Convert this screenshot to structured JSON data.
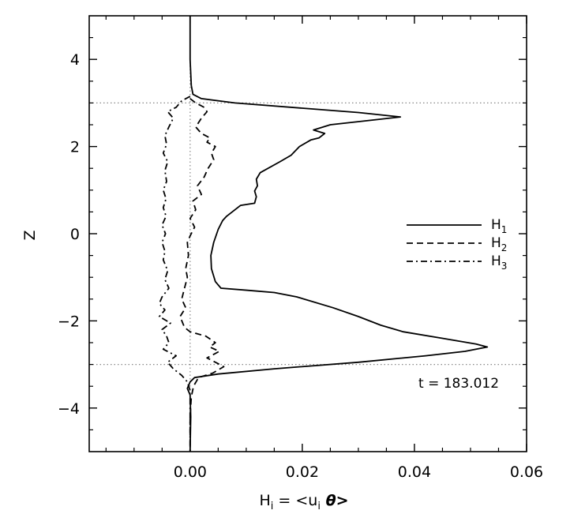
{
  "chart_data": {
    "type": "line",
    "xlabel": {
      "main": "H",
      "sub": "i",
      "eq": " = <u",
      "sub2": "i",
      "theta": " θ>"
    },
    "ylabel": "Z",
    "xlim": [
      -0.018,
      0.06
    ],
    "ylim": [
      -5,
      5
    ],
    "xticks": [
      0.0,
      0.02,
      0.04,
      0.06
    ],
    "xtick_labels": [
      "0.00",
      "0.02",
      "0.04",
      "0.06"
    ],
    "xminor": [
      -0.015,
      -0.01,
      -0.005,
      0.005,
      0.01,
      0.015,
      0.025,
      0.03,
      0.035,
      0.045,
      0.05,
      0.055
    ],
    "yticks": [
      -4,
      -2,
      0,
      2,
      4
    ],
    "ytick_labels": [
      "−4",
      "−2",
      "0",
      "2",
      "4"
    ],
    "yminor": [
      -4.5,
      -3.5,
      -3,
      -2.5,
      -1.5,
      -1,
      -0.5,
      0.5,
      1,
      1.5,
      2.5,
      3,
      3.5,
      4.5
    ],
    "reference_lines": {
      "horizontal": [
        3.0,
        -3.0
      ],
      "vertical": [
        0.0
      ],
      "style": "dotted"
    },
    "annotation": "t = 183.012",
    "legend": {
      "placement": "right",
      "entries": [
        {
          "main": "H",
          "sub": "1",
          "dash": "solid"
        },
        {
          "main": "H",
          "sub": "2",
          "dash": "dashed"
        },
        {
          "main": "H",
          "sub": "3",
          "dash": "dashdot"
        }
      ]
    },
    "series": [
      {
        "name": "H1",
        "dash": "solid",
        "points": [
          [
            0.0,
            5.0
          ],
          [
            0.0,
            4.0
          ],
          [
            0.0002,
            3.4
          ],
          [
            0.0005,
            3.2
          ],
          [
            0.002,
            3.1
          ],
          [
            0.008,
            3.0
          ],
          [
            0.02,
            2.88
          ],
          [
            0.03,
            2.78
          ],
          [
            0.0375,
            2.68
          ],
          [
            0.032,
            2.6
          ],
          [
            0.025,
            2.5
          ],
          [
            0.022,
            2.38
          ],
          [
            0.024,
            2.3
          ],
          [
            0.023,
            2.2
          ],
          [
            0.0215,
            2.15
          ],
          [
            0.0195,
            2.0
          ],
          [
            0.018,
            1.8
          ],
          [
            0.016,
            1.65
          ],
          [
            0.0125,
            1.4
          ],
          [
            0.0118,
            1.25
          ],
          [
            0.012,
            1.1
          ],
          [
            0.0115,
            0.98
          ],
          [
            0.0118,
            0.85
          ],
          [
            0.0115,
            0.7
          ],
          [
            0.009,
            0.65
          ],
          [
            0.0065,
            0.4
          ],
          [
            0.0058,
            0.3
          ],
          [
            0.005,
            0.1
          ],
          [
            0.0042,
            -0.2
          ],
          [
            0.0037,
            -0.5
          ],
          [
            0.0038,
            -0.8
          ],
          [
            0.0045,
            -1.1
          ],
          [
            0.0055,
            -1.25
          ],
          [
            0.0105,
            -1.3
          ],
          [
            0.015,
            -1.35
          ],
          [
            0.019,
            -1.45
          ],
          [
            0.0255,
            -1.7
          ],
          [
            0.03,
            -1.9
          ],
          [
            0.034,
            -2.1
          ],
          [
            0.038,
            -2.25
          ],
          [
            0.045,
            -2.4
          ],
          [
            0.051,
            -2.53
          ],
          [
            0.053,
            -2.6
          ],
          [
            0.049,
            -2.7
          ],
          [
            0.042,
            -2.8
          ],
          [
            0.03,
            -2.95
          ],
          [
            0.015,
            -3.1
          ],
          [
            0.005,
            -3.22
          ],
          [
            0.0008,
            -3.3
          ],
          [
            0.0,
            -3.4
          ],
          [
            -0.0005,
            -3.55
          ],
          [
            0.0,
            -3.7
          ],
          [
            0.0001,
            -4.2
          ],
          [
            0.0,
            -5.0
          ]
        ]
      },
      {
        "name": "H2",
        "dash": "dashed",
        "points": [
          [
            0.0,
            3.1
          ],
          [
            0.001,
            3.0
          ],
          [
            0.0025,
            2.9
          ],
          [
            0.003,
            2.8
          ],
          [
            0.002,
            2.65
          ],
          [
            0.001,
            2.45
          ],
          [
            0.002,
            2.3
          ],
          [
            0.0035,
            2.2
          ],
          [
            0.003,
            2.1
          ],
          [
            0.0045,
            2.0
          ],
          [
            0.0038,
            1.85
          ],
          [
            0.0042,
            1.7
          ],
          [
            0.0032,
            1.5
          ],
          [
            0.0025,
            1.3
          ],
          [
            0.0013,
            1.1
          ],
          [
            0.002,
            0.9
          ],
          [
            0.0005,
            0.75
          ],
          [
            0.001,
            0.55
          ],
          [
            0.0,
            0.35
          ],
          [
            0.0008,
            0.15
          ],
          [
            0.0,
            -0.05
          ],
          [
            -0.0005,
            -0.2
          ],
          [
            -0.0003,
            -0.5
          ],
          [
            -0.0008,
            -0.8
          ],
          [
            -0.0005,
            -1.0
          ],
          [
            -0.001,
            -1.25
          ],
          [
            -0.0015,
            -1.5
          ],
          [
            -0.0008,
            -1.7
          ],
          [
            -0.0018,
            -1.9
          ],
          [
            -0.001,
            -2.15
          ],
          [
            0.0,
            -2.25
          ],
          [
            0.0028,
            -2.35
          ],
          [
            0.0045,
            -2.5
          ],
          [
            0.0035,
            -2.6
          ],
          [
            0.0052,
            -2.7
          ],
          [
            0.003,
            -2.85
          ],
          [
            0.0045,
            -2.95
          ],
          [
            0.006,
            -3.05
          ],
          [
            0.004,
            -3.2
          ],
          [
            0.0015,
            -3.3
          ],
          [
            0.0006,
            -3.5
          ],
          [
            0.0002,
            -3.75
          ],
          [
            0.0,
            -4.2
          ],
          [
            0.0,
            -5.0
          ]
        ]
      },
      {
        "name": "H3",
        "dash": "dashdot",
        "points": [
          [
            0.0,
            3.15
          ],
          [
            -0.0015,
            3.05
          ],
          [
            -0.0025,
            2.9
          ],
          [
            -0.004,
            2.8
          ],
          [
            -0.003,
            2.65
          ],
          [
            -0.0038,
            2.45
          ],
          [
            -0.0045,
            2.25
          ],
          [
            -0.0042,
            2.05
          ],
          [
            -0.0048,
            1.85
          ],
          [
            -0.004,
            1.65
          ],
          [
            -0.0045,
            1.45
          ],
          [
            -0.0042,
            1.2
          ],
          [
            -0.0048,
            1.0
          ],
          [
            -0.0043,
            0.8
          ],
          [
            -0.0048,
            0.6
          ],
          [
            -0.0043,
            0.4
          ],
          [
            -0.005,
            0.2
          ],
          [
            -0.0044,
            0.0
          ],
          [
            -0.005,
            -0.2
          ],
          [
            -0.0045,
            -0.4
          ],
          [
            -0.0048,
            -0.6
          ],
          [
            -0.004,
            -0.85
          ],
          [
            -0.0045,
            -1.05
          ],
          [
            -0.0038,
            -1.25
          ],
          [
            -0.005,
            -1.45
          ],
          [
            -0.0055,
            -1.6
          ],
          [
            -0.0045,
            -1.75
          ],
          [
            -0.0055,
            -1.9
          ],
          [
            -0.0035,
            -2.05
          ],
          [
            -0.005,
            -2.2
          ],
          [
            -0.0042,
            -2.35
          ],
          [
            -0.0038,
            -2.5
          ],
          [
            -0.0048,
            -2.65
          ],
          [
            -0.0025,
            -2.8
          ],
          [
            -0.004,
            -2.95
          ],
          [
            -0.003,
            -3.1
          ],
          [
            -0.0015,
            -3.25
          ],
          [
            -0.0005,
            -3.4
          ],
          [
            0.0,
            -3.6
          ],
          [
            0.0,
            -5.0
          ]
        ]
      }
    ]
  }
}
